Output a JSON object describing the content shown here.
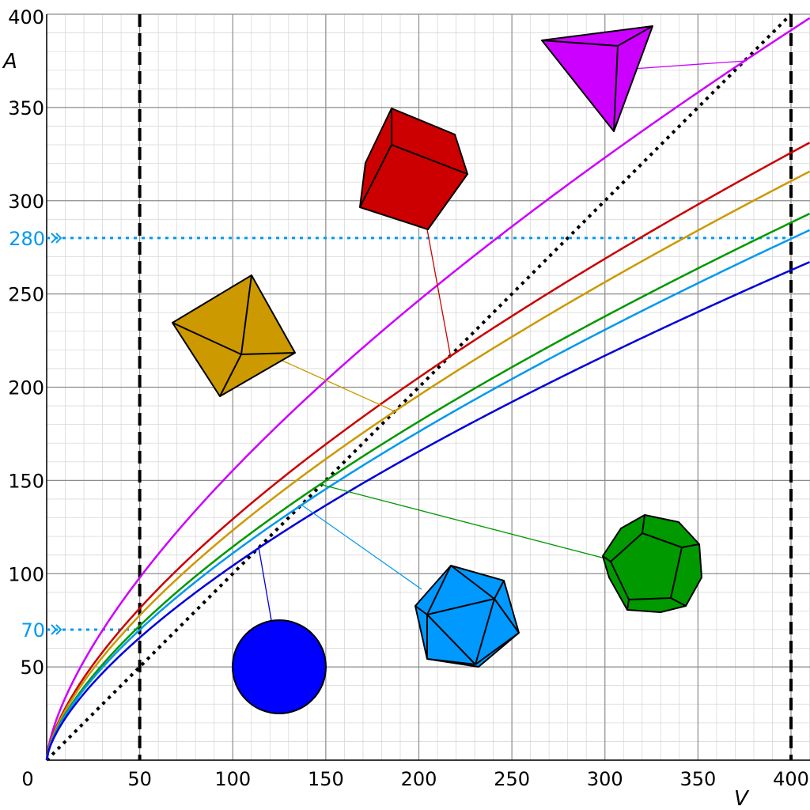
{
  "chart_data": {
    "type": "line",
    "xlabel": "V",
    "ylabel": "A",
    "xlim": [
      0,
      400
    ],
    "ylim": [
      0,
      400
    ],
    "grid": true,
    "x_ticks": [
      "0",
      "50",
      "100",
      "150",
      "200",
      "250",
      "300",
      "350",
      "400"
    ],
    "y_ticks": [
      "50",
      "100",
      "150",
      "200",
      "250",
      "300",
      "350",
      "400"
    ],
    "series": [
      {
        "shape": "tetrahedron",
        "color": "#cc00ff",
        "k": 7.21,
        "x": [
          0,
          50,
          100,
          150,
          200,
          250,
          300,
          350,
          400
        ],
        "y": [
          0,
          99.7,
          158.2,
          207.4,
          251.2,
          291.6,
          329.3,
          365.0,
          398.8
        ]
      },
      {
        "shape": "cube",
        "color": "#cc0000",
        "k": 6.0,
        "x": [
          0,
          50,
          100,
          150,
          200,
          250,
          300,
          350,
          400
        ],
        "y": [
          0,
          81.4,
          129.2,
          169.4,
          205.2,
          238.2,
          269.0,
          298.2,
          325.8
        ]
      },
      {
        "shape": "octahedron",
        "color": "#cc9900",
        "k": 5.72,
        "x": [
          0,
          50,
          100,
          150,
          200,
          250,
          300,
          350,
          400
        ],
        "y": [
          0,
          77.6,
          123.2,
          161.4,
          195.6,
          227.1,
          256.4,
          284.3,
          310.6
        ]
      },
      {
        "shape": "dodecahedron",
        "color": "#009900",
        "k": 5.31,
        "x": [
          0,
          50,
          100,
          150,
          200,
          250,
          300,
          350,
          400
        ],
        "y": [
          0,
          72.1,
          114.4,
          149.9,
          181.6,
          210.7,
          238.1,
          263.9,
          288.4
        ]
      },
      {
        "shape": "icosahedron",
        "color": "#0099ee",
        "k": 5.15,
        "x": [
          0,
          50,
          100,
          150,
          200,
          250,
          300,
          350,
          400
        ],
        "y": [
          0,
          69.9,
          110.9,
          145.3,
          176.1,
          204.4,
          230.8,
          255.9,
          279.6
        ]
      },
      {
        "shape": "sphere",
        "color": "#0000dd",
        "k": 4.84,
        "x": [
          0,
          50,
          100,
          150,
          200,
          250,
          300,
          350,
          400
        ],
        "y": [
          0,
          65.7,
          104.3,
          136.6,
          165.5,
          192.1,
          217.0,
          240.5,
          262.8
        ]
      }
    ],
    "reference_lines": [
      {
        "kind": "diagonal",
        "style": "dotted",
        "color": "#000000",
        "from": [
          0,
          0
        ],
        "to": [
          400,
          400
        ]
      },
      {
        "kind": "vertical",
        "style": "dashed",
        "color": "#000000",
        "x": 50
      },
      {
        "kind": "vertical",
        "style": "dashed",
        "color": "#000000",
        "x": 400
      },
      {
        "kind": "horizontal",
        "style": "dotted",
        "color": "#0099ee",
        "y": 280,
        "label": "280"
      },
      {
        "kind": "horizontal",
        "style": "dotted",
        "color": "#0099ee",
        "y": 70,
        "label": "70"
      }
    ]
  }
}
